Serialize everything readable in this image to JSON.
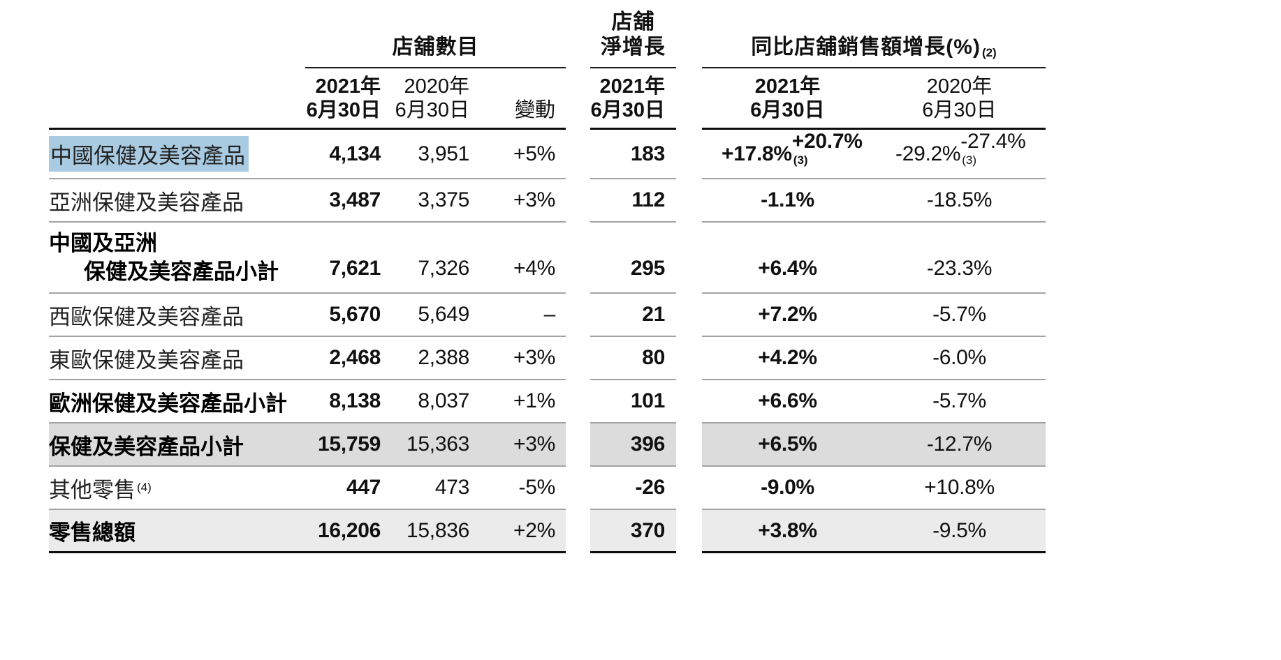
{
  "table": {
    "groups": {
      "store_count": "店舖數目",
      "net_growth_line1": "店舖",
      "net_growth_line2": "淨增長",
      "same_store_sales": "同比店舖銷售額增長(%)",
      "same_store_sales_sup": "(2)"
    },
    "columns": {
      "y2021_line1": "2021年",
      "y2021_line2": "6月30日",
      "y2020_line1": "2020年",
      "y2020_line2": "6月30日",
      "change": "變動"
    },
    "colors": {
      "selection_highlight": "#a9cbe2",
      "subtotal_row_bg": "#dcdcdc",
      "total_row_bg": "#ebebeb",
      "row_rule": "#a3a3a3",
      "strong_rule": "#0d0d0d"
    },
    "rows": [
      {
        "label": "中國保健及美容產品",
        "highlight": true,
        "s2021": "4,134",
        "s2020": "3,951",
        "chg": "+5%",
        "net": "183",
        "g2021": "+17.8%",
        "g2021b": "+20.7%",
        "g2021b_sup": "(3)",
        "g2020": "-29.2%",
        "g2020b": "-27.4%",
        "g2020b_sup": "(3)"
      },
      {
        "label": "亞洲保健及美容產品",
        "s2021": "3,487",
        "s2020": "3,375",
        "chg": "+3%",
        "net": "112",
        "g2021": "-1.1%",
        "g2020": "-18.5%"
      },
      {
        "label": "中國及亞洲",
        "label2": "保健及美容產品小計",
        "bold": true,
        "s2021": "7,621",
        "s2020": "7,326",
        "chg": "+4%",
        "net": "295",
        "g2021": "+6.4%",
        "g2020": "-23.3%"
      },
      {
        "label": "西歐保健及美容產品",
        "s2021": "5,670",
        "s2020": "5,649",
        "chg": "–",
        "net": "21",
        "g2021": "+7.2%",
        "g2020": "-5.7%"
      },
      {
        "label": "東歐保健及美容產品",
        "s2021": "2,468",
        "s2020": "2,388",
        "chg": "+3%",
        "net": "80",
        "g2021": "+4.2%",
        "g2020": "-6.0%"
      },
      {
        "label": "歐洲保健及美容產品小計",
        "bold": true,
        "s2021": "8,138",
        "s2020": "8,037",
        "chg": "+1%",
        "net": "101",
        "g2021": "+6.6%",
        "g2020": "-5.7%"
      },
      {
        "label": "保健及美容產品小計",
        "bold": true,
        "bg": "#dcdcdc",
        "s2021": "15,759",
        "s2020": "15,363",
        "chg": "+3%",
        "net": "396",
        "g2021": "+6.5%",
        "g2020": "-12.7%"
      },
      {
        "label": "其他零售",
        "label_sup": "(4)",
        "s2021": "447",
        "s2020": "473",
        "chg": "-5%",
        "net": "-26",
        "g2021": "-9.0%",
        "g2020": "+10.8%"
      },
      {
        "label": "零售總額",
        "bold": true,
        "bg": "#ebebeb",
        "s2021": "16,206",
        "s2020": "15,836",
        "chg": "+2%",
        "net": "370",
        "g2021": "+3.8%",
        "g2020": "-9.5%"
      }
    ]
  }
}
